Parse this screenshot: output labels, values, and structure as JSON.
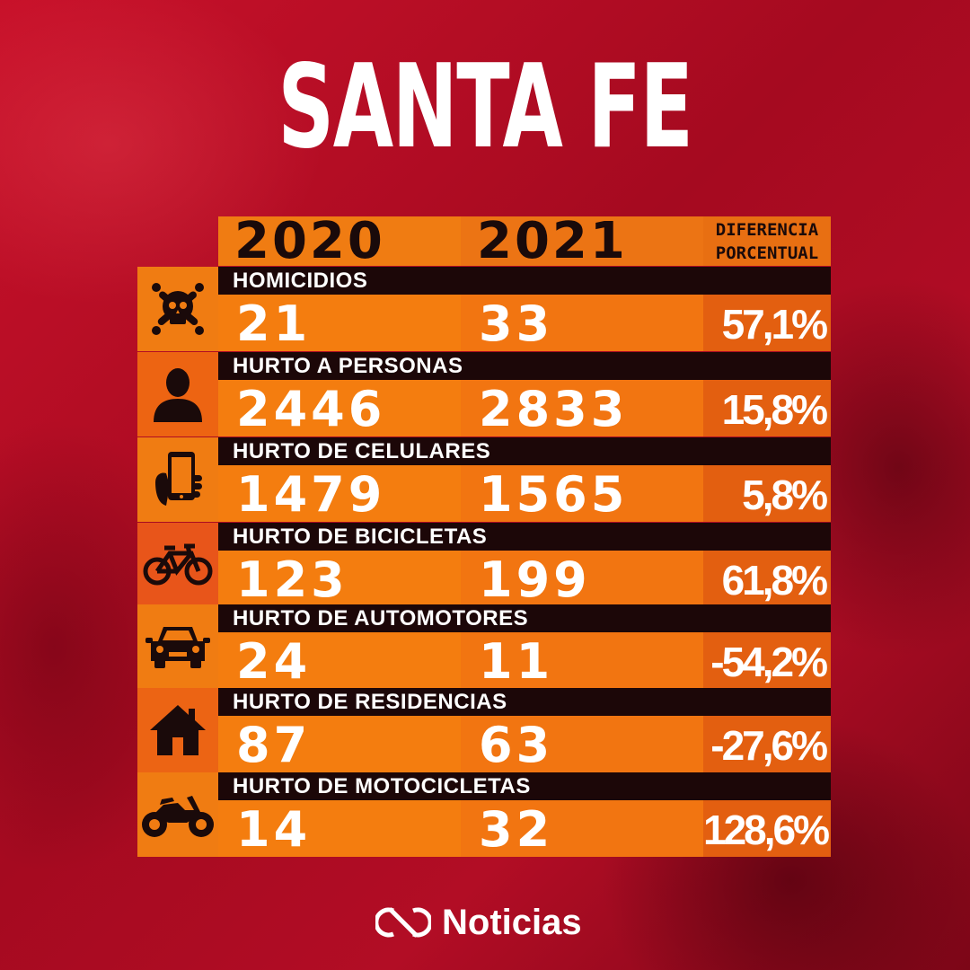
{
  "title": "SANTA FE",
  "header": {
    "year_2020": "2020",
    "year_2021": "2021",
    "diff_line1": "DIFERENCIA",
    "diff_line2": "PORCENTUAL"
  },
  "rows": [
    {
      "label": "HOMICIDIOS",
      "v2020": "21",
      "v2021": "33",
      "diff": "57,1%",
      "icon": "skull-icon",
      "icon_bg": "#f07c12"
    },
    {
      "label": "HURTO A PERSONAS",
      "v2020": "2446",
      "v2021": "2833",
      "diff": "15,8%",
      "icon": "person-icon",
      "icon_bg": "#ed6412"
    },
    {
      "label": "HURTO DE CELULARES",
      "v2020": "1479",
      "v2021": "1565",
      "diff": "5,8%",
      "icon": "phone-icon",
      "icon_bg": "#f07c12"
    },
    {
      "label": "HURTO DE BICICLETAS",
      "v2020": "123",
      "v2021": "199",
      "diff": "61,8%",
      "icon": "bicycle-icon",
      "icon_bg": "#e8551a"
    },
    {
      "label": "HURTO DE AUTOMOTORES",
      "v2020": "24",
      "v2021": "11",
      "diff": "-54,2%",
      "icon": "car-icon",
      "icon_bg": "#f07c12"
    },
    {
      "label": "HURTO DE RESIDENCIAS",
      "v2020": "87",
      "v2021": "63",
      "diff": "-27,6%",
      "icon": "house-icon",
      "icon_bg": "#ec6414"
    },
    {
      "label": "HURTO DE MOTOCICLETAS",
      "v2020": "14",
      "v2021": "32",
      "diff": "128,6%",
      "icon": "motorcycle-icon",
      "icon_bg": "#f07c12"
    }
  ],
  "footer": {
    "brand": "Noticias"
  }
}
